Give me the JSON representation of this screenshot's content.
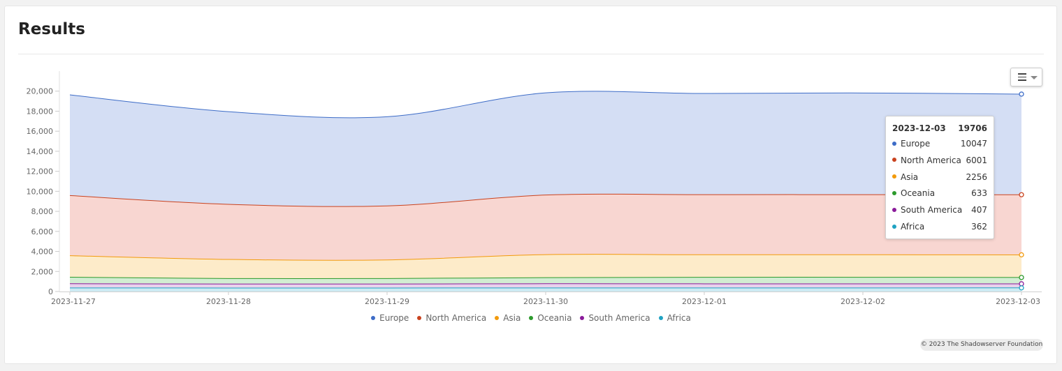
{
  "card": {
    "title": "Results"
  },
  "chart_data": {
    "type": "area",
    "stacked": true,
    "title": "",
    "xlabel": "",
    "ylabel": "",
    "x": [
      "2023-11-27",
      "2023-11-28",
      "2023-11-29",
      "2023-11-30",
      "2023-12-01",
      "2023-12-02",
      "2023-12-03"
    ],
    "ylim": [
      0,
      22000
    ],
    "yticks": [
      0,
      2000,
      4000,
      6000,
      8000,
      10000,
      12000,
      14000,
      16000,
      18000,
      20000
    ],
    "ytick_labels": [
      "0",
      "2,000",
      "4,000",
      "6,000",
      "8,000",
      "10,000",
      "12,000",
      "14,000",
      "16,000",
      "18,000",
      "20,000"
    ],
    "series": [
      {
        "name": "Europe",
        "color": "#3d6cc7",
        "fill": "#d4def4",
        "values": [
          10050,
          9250,
          8900,
          10200,
          10100,
          10150,
          10047
        ]
      },
      {
        "name": "North America",
        "color": "#c9421e",
        "fill": "#f8d6d1",
        "values": [
          6000,
          5500,
          5400,
          5950,
          6000,
          6000,
          6001
        ]
      },
      {
        "name": "Asia",
        "color": "#f29a0b",
        "fill": "#fdebc9",
        "values": [
          2150,
          1900,
          1850,
          2300,
          2250,
          2250,
          2256
        ]
      },
      {
        "name": "Oceania",
        "color": "#2c9a2c",
        "fill": "#d2edd2",
        "values": [
          650,
          550,
          550,
          600,
          650,
          650,
          633
        ]
      },
      {
        "name": "South America",
        "color": "#8a1a9a",
        "fill": "#e8d2ec",
        "values": [
          420,
          400,
          400,
          420,
          410,
          410,
          407
        ]
      },
      {
        "name": "Africa",
        "color": "#1fa2c2",
        "fill": "#cdebf3",
        "values": [
          360,
          350,
          350,
          360,
          360,
          360,
          362
        ]
      }
    ],
    "legend": "bottom-center",
    "grid": false
  },
  "tooltip": {
    "date": "2023-12-03",
    "total": "19706",
    "rows": [
      {
        "name": "Europe",
        "value": "10047",
        "color": "#3d6cc7"
      },
      {
        "name": "North America",
        "value": "6001",
        "color": "#c9421e"
      },
      {
        "name": "Asia",
        "value": "2256",
        "color": "#f29a0b"
      },
      {
        "name": "Oceania",
        "value": "633",
        "color": "#2c9a2c"
      },
      {
        "name": "South America",
        "value": "407",
        "color": "#8a1a9a"
      },
      {
        "name": "Africa",
        "value": "362",
        "color": "#1fa2c2"
      }
    ]
  },
  "menu": {
    "icon": "hamburger-menu-icon"
  },
  "credits": "© 2023 The Shadowserver Foundation"
}
